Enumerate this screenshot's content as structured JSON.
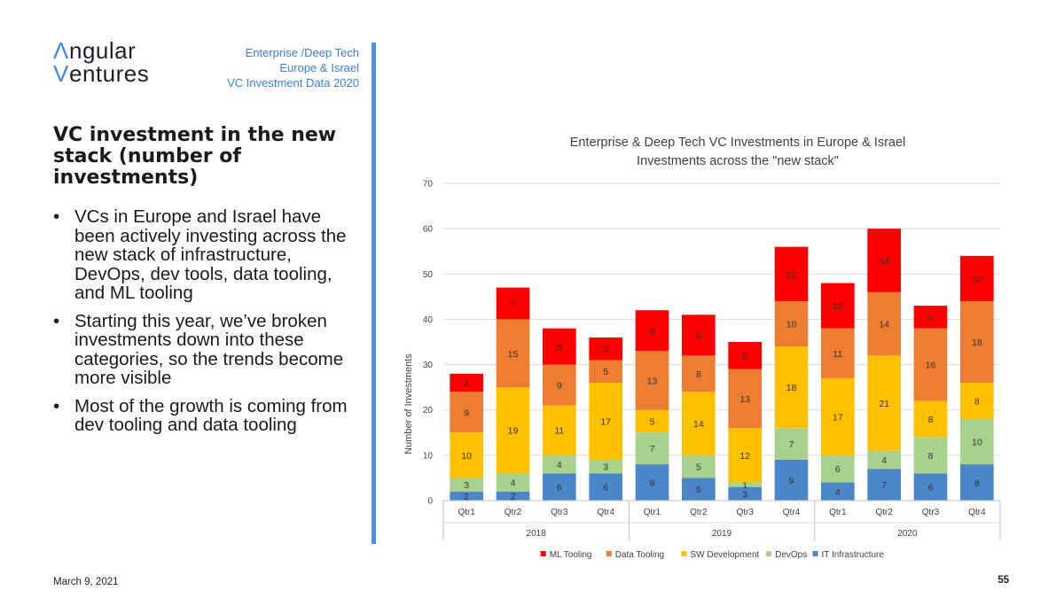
{
  "logo": {
    "line1_initial": "Λ",
    "line1_rest": "ngular",
    "line2_initial": "V",
    "line2_rest": "entures"
  },
  "header": {
    "line1": "Enterprise /Deep Tech",
    "line2": "Europe & Israel",
    "line3": "VC Investment Data 2020"
  },
  "heading": "VC investment in the new stack (number of investments)",
  "bullets": [
    "VCs in Europe and Israel have been actively investing across the new stack of infrastructure, DevOps, dev tools, data tooling, and ML tooling",
    "Starting this year, we’ve broken investments down into these categories, so the trends become more visible",
    "Most of the growth is coming from dev tooling and data tooling"
  ],
  "bullet_glyph": "•",
  "footer": {
    "date": "March 9, 2021",
    "page": "55"
  },
  "chart_data": {
    "type": "stacked-bar",
    "title_line1": "Enterprise & Deep Tech VC Investments in Europe & Israel",
    "title_line2": "Investments across the \"new stack\"",
    "ylabel": "Number of Investments",
    "ylim": [
      0,
      70
    ],
    "yticks": [
      0,
      10,
      20,
      30,
      40,
      50,
      60,
      70
    ],
    "categories": [
      "Qtr1",
      "Qtr2",
      "Qtr3",
      "Qtr4",
      "Qtr1",
      "Qtr2",
      "Qtr3",
      "Qtr4",
      "Qtr1",
      "Qtr2",
      "Qtr3",
      "Qtr4"
    ],
    "groups": [
      {
        "label": "2018",
        "count": 4
      },
      {
        "label": "2019",
        "count": 4
      },
      {
        "label": "2020",
        "count": 4
      }
    ],
    "series": [
      {
        "name": "IT Infrastructure",
        "color": "#4a86c8",
        "values": [
          2,
          2,
          6,
          6,
          8,
          5,
          3,
          9,
          4,
          7,
          6,
          8
        ]
      },
      {
        "name": "DevOps",
        "color": "#a9d18e",
        "values": [
          3,
          4,
          4,
          3,
          7,
          5,
          1,
          7,
          6,
          4,
          8,
          10
        ]
      },
      {
        "name": "SW Development",
        "color": "#ffc000",
        "values": [
          10,
          19,
          11,
          17,
          5,
          14,
          12,
          18,
          17,
          21,
          8,
          8
        ]
      },
      {
        "name": "Data Tooling",
        "color": "#ed7d31",
        "values": [
          9,
          15,
          9,
          5,
          13,
          8,
          13,
          10,
          11,
          14,
          16,
          18
        ]
      },
      {
        "name": "ML Tooling",
        "color": "#ff0000",
        "values": [
          4,
          7,
          8,
          5,
          9,
          9,
          6,
          12,
          10,
          14,
          5,
          10
        ]
      }
    ],
    "legend_order": [
      "ML Tooling",
      "Data Tooling",
      "SW Development",
      "DevOps",
      "IT Infrastructure"
    ],
    "legend_position": "bottom",
    "grid": true
  }
}
